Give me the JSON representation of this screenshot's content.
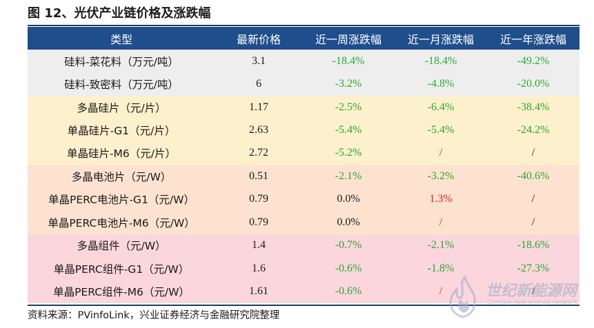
{
  "figure": {
    "title": "图 12、光伏产业链价格及涨跌幅",
    "source": "资料来源：PVinfoLink，兴业证券经济与金融研究院整理"
  },
  "table": {
    "headers": [
      "类型",
      "最新价格",
      "近一周涨跌幅",
      "近一月涨跌幅",
      "近一年涨跌幅"
    ],
    "rows": [
      {
        "group": "g1",
        "name": "硅料-菜花料（万元/吨）",
        "price": "3.1",
        "week": "-18.4%",
        "month": "-18.4%",
        "year": "-49.2%"
      },
      {
        "group": "g1",
        "name": "硅料-致密料（万元/吨）",
        "price": "6",
        "week": "-3.2%",
        "month": "-4.8%",
        "year": "-20.0%"
      },
      {
        "group": "g2",
        "name": "多晶硅片（元/片）",
        "price": "1.17",
        "week": "-2.5%",
        "month": "-6.4%",
        "year": "-38.4%"
      },
      {
        "group": "g2",
        "name": "单晶硅片-G1（元/片）",
        "price": "2.63",
        "week": "-5.4%",
        "month": "-5.4%",
        "year": "-24.2%"
      },
      {
        "group": "g2",
        "name": "单晶硅片-M6（元/片）",
        "price": "2.72",
        "week": "-5.2%",
        "month": "/",
        "year": "/"
      },
      {
        "group": "g3",
        "name": "多晶电池片（元/W）",
        "price": "0.51",
        "week": "-2.1%",
        "month": "-3.2%",
        "year": "-40.6%"
      },
      {
        "group": "g3",
        "name": "单晶PERC电池片-G1（元/W）",
        "price": "0.79",
        "week": "0.0%",
        "month": "1.3%",
        "year": "/"
      },
      {
        "group": "g3",
        "name": "单晶PERC电池片-M6（元/W）",
        "price": "0.79",
        "week": "0.0%",
        "month": "/",
        "year": "/"
      },
      {
        "group": "g4",
        "name": "多晶组件（元/W）",
        "price": "1.4",
        "week": "-0.7%",
        "month": "-2.1%",
        "year": "-18.6%"
      },
      {
        "group": "g4",
        "name": "单晶PERC组件-G1（元/W）",
        "price": "1.6",
        "week": "-0.6%",
        "month": "-1.8%",
        "year": "-27.3%"
      },
      {
        "group": "g4",
        "name": "单晶PERC组件-M6（元/W）",
        "price": "1.61",
        "week": "-0.6%",
        "month": "/",
        "year": "/"
      }
    ]
  },
  "watermark": {
    "text_cn": "世纪新能源网",
    "text_en": "Century new energy network"
  },
  "colors": {
    "header_bg": "#1f4e8c",
    "negative": "#2aa832",
    "positive": "#e02020"
  }
}
